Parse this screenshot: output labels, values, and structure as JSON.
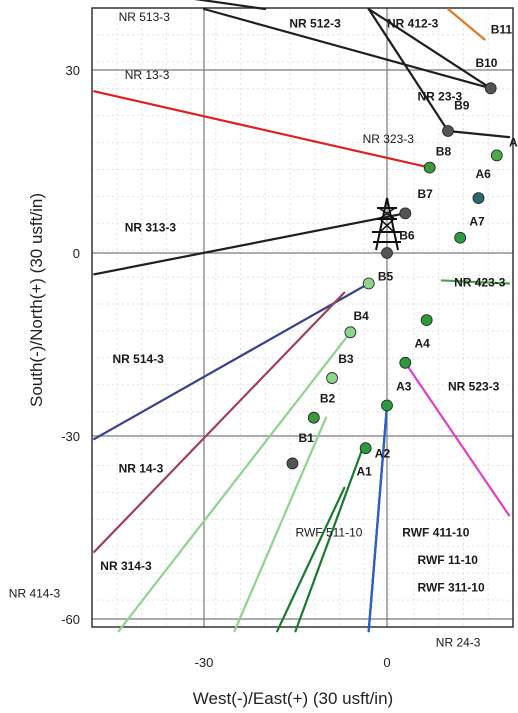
{
  "chart_data": {
    "type": "scatter",
    "xlabel": "West(-)/East(+) (30 usft/in)",
    "ylabel": "South(-)/North(+) (30 usft/in)",
    "xlim": [
      -48,
      20
    ],
    "ylim": [
      -62,
      40
    ],
    "x_ticks": [
      {
        "v": -30,
        "label": "-30"
      },
      {
        "v": 0,
        "label": "0"
      }
    ],
    "y_ticks": [
      {
        "v": 30,
        "label": "30"
      },
      {
        "v": 0,
        "label": "0"
      },
      {
        "v": -30,
        "label": "-30"
      },
      {
        "v": -60,
        "label": "-60"
      }
    ],
    "grid": true,
    "wells": [
      {
        "name": "NR 513-3",
        "color": "#1f1f1f",
        "points": [
          [
            -20,
            40
          ],
          [
            -48,
            44
          ]
        ],
        "label": {
          "text": "NR 513-3",
          "at": [
            -44,
            38
          ],
          "bold": false
        }
      },
      {
        "name": "NR 512-3",
        "color": "#1f1f1f",
        "points": [
          [
            -30,
            40
          ],
          [
            17,
            27
          ]
        ],
        "label": {
          "text": "NR 512-3",
          "at": [
            -16,
            37
          ],
          "bold": true
        }
      },
      {
        "name": "NR 412-3",
        "color": "#1f1f1f",
        "points": [
          [
            -3,
            40
          ],
          [
            17,
            27
          ]
        ],
        "label": {
          "text": "NR 412-3",
          "at": [
            0,
            37
          ],
          "bold": true
        }
      },
      {
        "name": "NR 23-3",
        "color": "#1f1f1f",
        "points": [
          [
            -3,
            40
          ],
          [
            10,
            20
          ]
        ],
        "label": {
          "text": "NR 23-3",
          "at": [
            5,
            25
          ],
          "bold": true
        }
      },
      {
        "name": "NR 13-3",
        "color": "#e02020",
        "points": [
          [
            -48,
            26.5
          ],
          [
            7,
            14
          ]
        ],
        "label": {
          "text": "NR 13-3",
          "at": [
            -43,
            28.5
          ],
          "bold": false
        }
      },
      {
        "name": "NR 323-3",
        "color": "#1f1f1f",
        "points": [
          [
            10,
            20
          ],
          [
            20,
            19
          ]
        ],
        "label": {
          "text": "NR 323-3",
          "at": [
            -4,
            18
          ],
          "bold": false
        }
      },
      {
        "name": "NR 313-3",
        "color": "#1f1f1f",
        "points": [
          [
            -48,
            -3.5
          ],
          [
            3,
            6.5
          ]
        ],
        "label": {
          "text": "NR 313-3",
          "at": [
            -43,
            3.5
          ],
          "bold": true
        }
      },
      {
        "name": "NR 423-3",
        "color": "#4aa04a",
        "points": [
          [
            9,
            -4.5
          ],
          [
            20,
            -5
          ]
        ],
        "label": {
          "text": "NR 423-3",
          "at": [
            11,
            -5.5
          ],
          "bold": true
        }
      },
      {
        "name": "NR 523-3",
        "color": "#e040c8",
        "points": [
          [
            3,
            -18
          ],
          [
            20,
            -43
          ]
        ],
        "label": {
          "text": "NR 523-3",
          "at": [
            10,
            -22.5
          ],
          "bold": true
        }
      },
      {
        "name": "NR 514-3",
        "color": "#3a3f8f",
        "points": [
          [
            -3,
            -5
          ],
          [
            -48,
            -30.5
          ]
        ],
        "label": {
          "text": "NR 514-3",
          "at": [
            -45,
            -18
          ],
          "bold": true
        }
      },
      {
        "name": "NR 14-3",
        "color": "#a0405a",
        "points": [
          [
            -7,
            -6.5
          ],
          [
            -48,
            -49
          ]
        ],
        "label": {
          "text": "NR 14-3",
          "at": [
            -44,
            -36
          ],
          "bold": true
        }
      },
      {
        "name": "NR 314-3",
        "color": "#8ed38e",
        "points": [
          [
            -6,
            -13
          ],
          [
            -44,
            -62
          ]
        ],
        "label": {
          "text": "NR 314-3",
          "at": [
            -47,
            -52
          ],
          "bold": true
        }
      },
      {
        "name": "NR 414-3",
        "color": "#8ed38e",
        "points": [
          [
            -10,
            -27
          ],
          [
            -25,
            -62
          ]
        ],
        "label": {
          "text": "NR 414-3",
          "at": [
            -62,
            -56.5
          ],
          "bold": false
        }
      },
      {
        "name": "RWF 511-10",
        "color": "#1a7a2e",
        "points": [
          [
            -7,
            -38.5
          ],
          [
            -18,
            -62
          ]
        ],
        "label": {
          "text": "RWF 511-10",
          "at": [
            -15,
            -46.5
          ],
          "bold": false
        }
      },
      {
        "name": "RWF 411-10",
        "color": "#1a7a2e",
        "points": [
          [
            -4,
            -32
          ],
          [
            -15,
            -62
          ]
        ],
        "label": {
          "text": "RWF 411-10",
          "at": [
            2.5,
            -46.5
          ],
          "bold": true
        }
      },
      {
        "name": "RWF 11-10",
        "color": "#2a60c8",
        "points": [
          [
            0,
            -25
          ],
          [
            -3,
            -62
          ]
        ],
        "label": {
          "text": "RWF 11-10",
          "at": [
            5,
            -51
          ],
          "bold": true
        }
      },
      {
        "name": "RWF 311-10",
        "color": "#2a60c8",
        "points": [
          [
            0,
            -25
          ],
          [
            -3,
            -62
          ]
        ],
        "label": {
          "text": "RWF 311-10",
          "at": [
            5,
            -55.5
          ],
          "bold": true
        }
      },
      {
        "name": "NR 24-3",
        "color": "#2a60c8",
        "points": [
          [
            0,
            -25
          ],
          [
            -3,
            -62
          ]
        ],
        "label": {
          "text": "NR 24-3",
          "at": [
            8,
            -64.5
          ],
          "bold": false
        }
      },
      {
        "name": "B11",
        "color": "#e07a20",
        "points": [
          [
            10,
            40
          ],
          [
            16,
            35
          ]
        ],
        "label": {
          "text": "B11",
          "at": [
            17,
            36
          ],
          "bold": true
        }
      }
    ],
    "points": [
      {
        "name": "A",
        "x": 18,
        "y": 16,
        "color": "#4aaa4a",
        "label_at": [
          20,
          17.5
        ]
      },
      {
        "name": "A6",
        "x": 15,
        "y": 9,
        "color": "#2a6a6a",
        "label_at": [
          14.5,
          12.3
        ]
      },
      {
        "name": "A7",
        "x": 12,
        "y": 2.5,
        "color": "#2a9a3a",
        "label_at": [
          13.5,
          4.5
        ]
      },
      {
        "name": "A4",
        "x": 6.5,
        "y": -11,
        "color": "#2a9a3a",
        "label_at": [
          4.5,
          -15.5
        ]
      },
      {
        "name": "A3",
        "x": 3,
        "y": -18,
        "color": "#2a9a3a",
        "label_at": [
          1.5,
          -22.5
        ]
      },
      {
        "name": "A2",
        "x": 0,
        "y": -25,
        "color": "#2a9a3a",
        "label_at": [
          -2,
          -33.5
        ]
      },
      {
        "name": "A1",
        "x": -3.5,
        "y": -32,
        "color": "#2a9a3a",
        "label_at": [
          -5,
          -36.5
        ]
      },
      {
        "name": "B10",
        "x": 17,
        "y": 27,
        "color": "#555555",
        "label_at": [
          14.5,
          30.5
        ]
      },
      {
        "name": "B9",
        "x": 10,
        "y": 20,
        "color": "#555555",
        "label_at": [
          11,
          23.5
        ]
      },
      {
        "name": "B8",
        "x": 7,
        "y": 14,
        "color": "#3a9a3a",
        "label_at": [
          8,
          16
        ]
      },
      {
        "name": "B7",
        "x": 3,
        "y": 6.5,
        "color": "#555555",
        "label_at": [
          5,
          9
        ]
      },
      {
        "name": "B6",
        "x": 0,
        "y": 0,
        "color": "#555555",
        "label_at": [
          2,
          2.2
        ]
      },
      {
        "name": "B5",
        "x": -3,
        "y": -5,
        "color": "#8ed38e",
        "label_at": [
          -1.5,
          -4.5
        ]
      },
      {
        "name": "B4",
        "x": -6,
        "y": -13,
        "color": "#8ed38e",
        "label_at": [
          -5.5,
          -11
        ]
      },
      {
        "name": "B3",
        "x": -9,
        "y": -20.5,
        "color": "#8ed38e",
        "label_at": [
          -8,
          -18
        ]
      },
      {
        "name": "B2",
        "x": -12,
        "y": -27,
        "color": "#3a9a3a",
        "label_at": [
          -11,
          -24.5
        ]
      },
      {
        "name": "B1",
        "x": -15.5,
        "y": -34.5,
        "color": "#555555",
        "label_at": [
          -14.5,
          -31
        ]
      }
    ]
  }
}
